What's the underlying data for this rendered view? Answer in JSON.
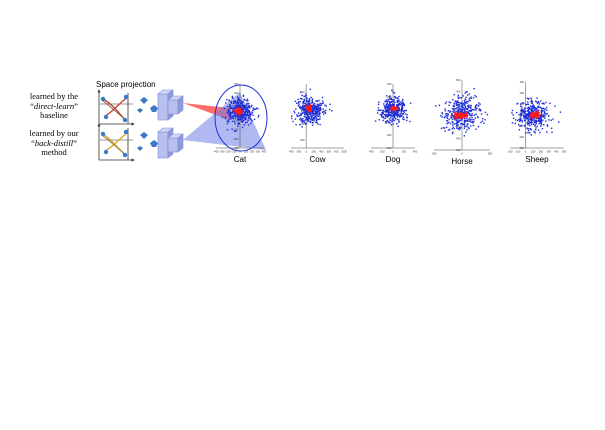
{
  "figure": {
    "space_projection_label": "Space projection",
    "row1": {
      "line1": "learned by the",
      "line2_quote_open": "“",
      "line2_italic": "direct-learn",
      "line2_quote_close": "”",
      "line3": "baseline"
    },
    "row2": {
      "line1": "learned by our",
      "line2_quote_open": "“",
      "line2_italic": "back-distill",
      "line2_quote_close": "”",
      "line3": "method"
    },
    "colors": {
      "blue": "#1f2fd6",
      "red": "#ff1a1a",
      "block": "#9aa6e6",
      "block_dark": "#6a78d0",
      "shape": "#3b79c8"
    }
  },
  "chart_data": [
    {
      "type": "scatter",
      "title": "Cat",
      "x_ticks": [
        "-400",
        "-300",
        "-200",
        "-100",
        "0",
        "100",
        "200",
        "300",
        "400"
      ],
      "y_ticks": [
        "300",
        "200",
        "100",
        "0",
        "-100",
        "-200",
        "-300",
        "-400"
      ],
      "xlim": [
        -400,
        400
      ],
      "ylim": [
        -400,
        300
      ],
      "blue_cluster": {
        "cx": 0,
        "cy": 0,
        "sx": 110,
        "sy": 70
      },
      "red_cluster": {
        "cx": -30,
        "cy": 5,
        "sx": 25,
        "sy": 12
      },
      "ellipse": true
    },
    {
      "type": "scatter",
      "title": "Cow",
      "x_ticks": [
        "-400",
        "-200",
        "0",
        "200",
        "400",
        "600",
        "800",
        "1000"
      ],
      "y_ticks": [
        "200",
        "0",
        "-200",
        "-400"
      ],
      "xlim": [
        -400,
        1000
      ],
      "ylim": [
        -500,
        300
      ],
      "blue_cluster": {
        "cx": 100,
        "cy": -30,
        "sx": 180,
        "sy": 90
      },
      "red_cluster": {
        "cx": 80,
        "cy": -5,
        "sx": 30,
        "sy": 15
      }
    },
    {
      "type": "scatter",
      "title": "Dog",
      "x_ticks": [
        "-400",
        "-200",
        "0",
        "200",
        "400"
      ],
      "y_ticks": [
        "400",
        "200",
        "0",
        "-200",
        "-400",
        "-600"
      ],
      "xlim": [
        -400,
        400
      ],
      "ylim": [
        -600,
        400
      ],
      "blue_cluster": {
        "cx": 0,
        "cy": 0,
        "sx": 120,
        "sy": 90
      },
      "red_cluster": {
        "cx": 20,
        "cy": 20,
        "sx": 25,
        "sy": 12
      }
    },
    {
      "type": "scatter",
      "title": "Horse",
      "x_ticks": [
        "-500",
        "0",
        "500"
      ],
      "y_ticks": [
        "600",
        "400",
        "200",
        "0",
        "-200",
        "-400",
        "-600"
      ],
      "xlim": [
        -500,
        500
      ],
      "ylim": [
        -600,
        600
      ],
      "blue_cluster": {
        "cx": 0,
        "cy": 20,
        "sx": 170,
        "sy": 130
      },
      "red_cluster": {
        "cx": -30,
        "cy": -5,
        "sx": 55,
        "sy": 22
      }
    },
    {
      "type": "scatter",
      "title": "Sheep",
      "x_ticks": [
        "-200",
        "-100",
        "0",
        "100",
        "200",
        "300",
        "400",
        "500"
      ],
      "y_ticks": [
        "300",
        "200",
        "100",
        "0",
        "-100",
        "-200",
        "-300"
      ],
      "xlim": [
        -200,
        500
      ],
      "ylim": [
        -300,
        300
      ],
      "blue_cluster": {
        "cx": 100,
        "cy": 0,
        "sx": 110,
        "sy": 65
      },
      "red_cluster": {
        "cx": 130,
        "cy": 0,
        "sx": 25,
        "sy": 12
      }
    }
  ]
}
